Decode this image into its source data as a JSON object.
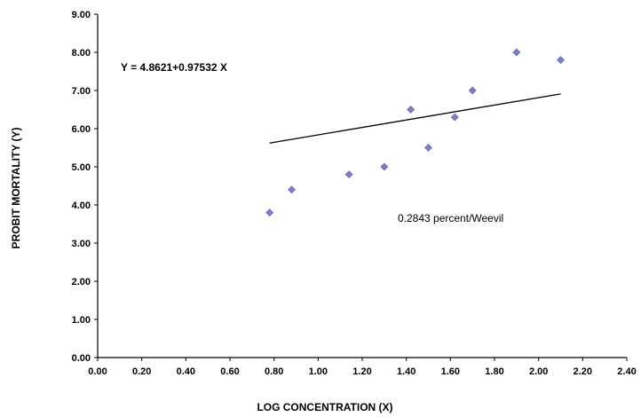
{
  "chart_data": {
    "type": "scatter",
    "title": "",
    "xlabel": "LOG CONCENTRATION (X)",
    "ylabel": "PROBIT MORTALITY (Y)",
    "xlim": [
      0,
      2.4
    ],
    "ylim": [
      0,
      9
    ],
    "x_ticks": [
      0,
      0.2,
      0.4,
      0.6,
      0.8,
      1.0,
      1.2,
      1.4,
      1.6,
      1.8,
      2.0,
      2.2,
      2.4
    ],
    "x_tick_labels": [
      "0.00",
      "0.20",
      "0.40",
      "0.60",
      "0.80",
      "1.00",
      "1.20",
      "1.40",
      "1.60",
      "1.80",
      "2.00",
      "2.20",
      "2.40"
    ],
    "y_ticks": [
      0,
      1,
      2,
      3,
      4,
      5,
      6,
      7,
      8,
      9
    ],
    "y_tick_labels": [
      "0.00",
      "1.00",
      "2.00",
      "3.00",
      "4.00",
      "5.00",
      "6.00",
      "7.00",
      "8.00",
      "9.00"
    ],
    "grid": false,
    "series": [
      {
        "marker": "diamond",
        "color": "#7b7fc4",
        "points": [
          {
            "x": 0.78,
            "y": 3.8
          },
          {
            "x": 0.88,
            "y": 4.4
          },
          {
            "x": 1.14,
            "y": 4.8
          },
          {
            "x": 1.3,
            "y": 5.0
          },
          {
            "x": 1.42,
            "y": 6.5
          },
          {
            "x": 1.5,
            "y": 5.5
          },
          {
            "x": 1.62,
            "y": 6.3
          },
          {
            "x": 1.7,
            "y": 7.0
          },
          {
            "x": 1.9,
            "y": 8.0
          },
          {
            "x": 2.1,
            "y": 7.8
          }
        ]
      }
    ],
    "trendline": {
      "intercept": 4.8621,
      "slope": 0.97532,
      "x_range": [
        0.78,
        2.1
      ],
      "color": "#000000"
    },
    "annotations": {
      "equation": "Y = 4.8621+0.97532 X",
      "ld50": "0.2843 percent/Weevil"
    }
  }
}
